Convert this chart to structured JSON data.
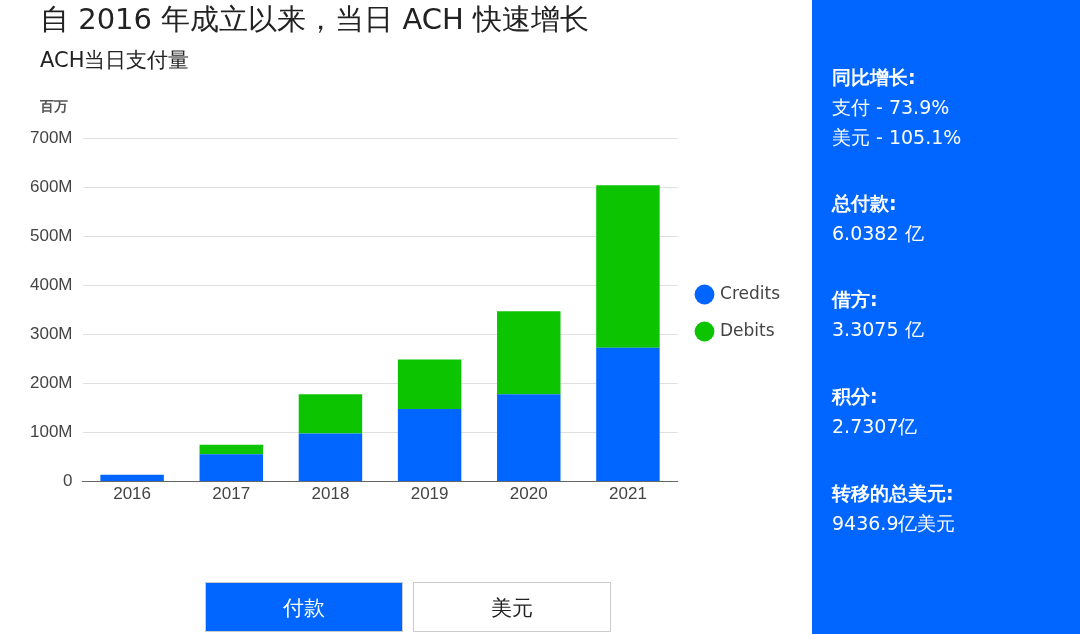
{
  "chart_data": {
    "type": "bar",
    "title": "自 2016 年成立以来，当日 ACH 快速增长",
    "subtitle": "ACH当日支付量",
    "ylabel": "百万",
    "categories": [
      "2016",
      "2017",
      "2018",
      "2019",
      "2020",
      "2021"
    ],
    "series": [
      {
        "name": "Credits",
        "color": "#0066ff",
        "values": [
          14,
          56,
          98,
          148,
          178,
          273
        ]
      },
      {
        "name": "Debits",
        "color": "#0cc400",
        "values": [
          0,
          19,
          80,
          101,
          169,
          331
        ]
      }
    ],
    "stacked": true,
    "ylim": [
      0,
      700
    ],
    "yticks": [
      0,
      {
        "value": 100,
        "label": "100M"
      },
      {
        "value": 200,
        "label": "200M"
      },
      {
        "value": 300,
        "label": "300M"
      },
      {
        "value": 400,
        "label": "400M"
      },
      {
        "value": 500,
        "label": "500M"
      },
      {
        "value": 600,
        "label": "600M"
      },
      {
        "value": 700,
        "label": "700M"
      }
    ],
    "grid": "y",
    "legend": "right",
    "annotations": [
      "同比增长:",
      "支付 - 73.9%",
      "美元 - 105.1%",
      "总付款:",
      "6.0382 亿",
      "借方:",
      "3.3075 亿",
      "积分:",
      "2.7307亿",
      "转移的总美元:",
      "9436.9亿美元",
      "付款",
      "美元"
    ]
  }
}
